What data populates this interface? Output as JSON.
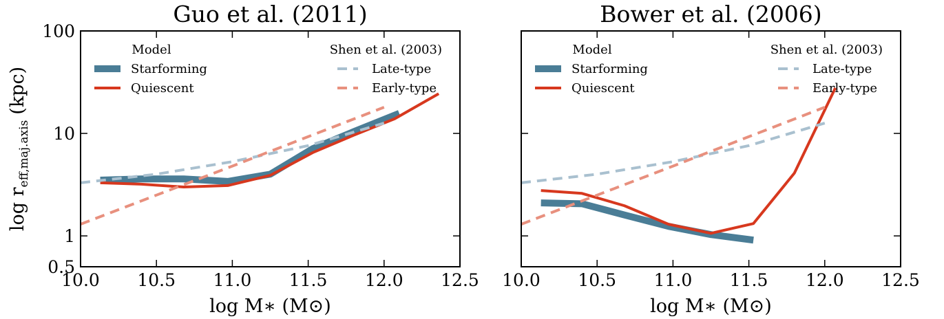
{
  "chart_data": [
    {
      "type": "line",
      "title": "Guo et al. (2011)",
      "xlabel": "log M∗ (M⊙)",
      "ylabel": [
        "log r",
        "eff,maj.axis",
        "(kpc)"
      ],
      "xlim": [
        10.0,
        12.5
      ],
      "ylim": [
        0.5,
        100
      ],
      "yscale": "log",
      "show_yticklabels": true,
      "xticks": [
        {
          "value": 10,
          "label": "10.0"
        },
        10.5,
        {
          "value": 11,
          "label": "11.0"
        },
        11.5,
        {
          "value": 12,
          "label": "12.0"
        },
        12.5
      ],
      "yticks": [
        0.5,
        1,
        10,
        100
      ],
      "series_groups": [
        {
          "title": "Model",
          "series": [
            {
              "name": "Starforming",
              "color": "#4a7d96",
              "linestyle": "solid",
              "x": [
                10.13,
                10.4,
                10.68,
                10.97,
                11.25,
                11.53,
                11.8,
                12.1
              ],
              "values": [
                3.5,
                3.6,
                3.6,
                3.4,
                4.0,
                7.1,
                10.4,
                15.7
              ]
            },
            {
              "name": "Quiescent",
              "color": "#d7381e",
              "linestyle": "solid",
              "x": [
                10.13,
                10.4,
                10.68,
                10.97,
                11.25,
                11.53,
                11.8,
                12.07,
                12.36
              ],
              "values": [
                3.3,
                3.2,
                3.0,
                3.1,
                3.9,
                6.5,
                9.6,
                13.9,
                24.4
              ]
            }
          ]
        },
        {
          "title": "Shen et al. (2003)",
          "series": [
            {
              "name": "Late-type",
              "color": "#a9c0cf",
              "linestyle": "dashed",
              "x": [
                10.0,
                10.5,
                11.0,
                11.5,
                12.0
              ],
              "values": [
                3.3,
                4.0,
                5.3,
                7.6,
                12.6
              ]
            },
            {
              "name": "Early-type",
              "color": "#e8907e",
              "linestyle": "dashed",
              "x": [
                10.0,
                10.5,
                11.0,
                11.5,
                12.0
              ],
              "values": [
                1.3,
                2.5,
                4.8,
                9.3,
                18
              ]
            }
          ]
        }
      ]
    },
    {
      "type": "line",
      "title": "Bower et al. (2006)",
      "xlabel": "log M∗ (M⊙)",
      "xlim": [
        10.0,
        12.5
      ],
      "ylim": [
        0.5,
        100
      ],
      "yscale": "log",
      "show_yticklabels": false,
      "xticks": [
        {
          "value": 10,
          "label": "10.0"
        },
        10.5,
        {
          "value": 11,
          "label": "11.0"
        },
        11.5,
        {
          "value": 12,
          "label": "12.0"
        },
        12.5
      ],
      "yticks": [
        0.5,
        1,
        10,
        100
      ],
      "series_groups": [
        {
          "title": "Model",
          "series": [
            {
              "name": "Starforming",
              "color": "#4a7d96",
              "linestyle": "solid",
              "x": [
                10.13,
                10.4,
                10.68,
                10.97,
                11.25,
                11.53
              ],
              "values": [
                2.1,
                2.06,
                1.6,
                1.24,
                1.03,
                0.91
              ]
            },
            {
              "name": "Quiescent",
              "color": "#d7381e",
              "linestyle": "solid",
              "x": [
                10.13,
                10.4,
                10.68,
                10.97,
                11.25,
                11.53,
                11.8,
                12.07
              ],
              "values": [
                2.77,
                2.6,
                1.97,
                1.3,
                1.06,
                1.32,
                4.1,
                27.8
              ]
            }
          ]
        },
        {
          "title": "Shen et al. (2003)",
          "series": [
            {
              "name": "Late-type",
              "color": "#a9c0cf",
              "linestyle": "dashed",
              "x": [
                10.0,
                10.5,
                11.0,
                11.5,
                12.0
              ],
              "values": [
                3.3,
                4.0,
                5.3,
                7.6,
                12.6
              ]
            },
            {
              "name": "Early-type",
              "color": "#e8907e",
              "linestyle": "dashed",
              "x": [
                10.0,
                10.5,
                11.0,
                11.5,
                12.0
              ],
              "values": [
                1.3,
                2.5,
                4.8,
                9.3,
                18
              ]
            }
          ]
        }
      ]
    }
  ]
}
